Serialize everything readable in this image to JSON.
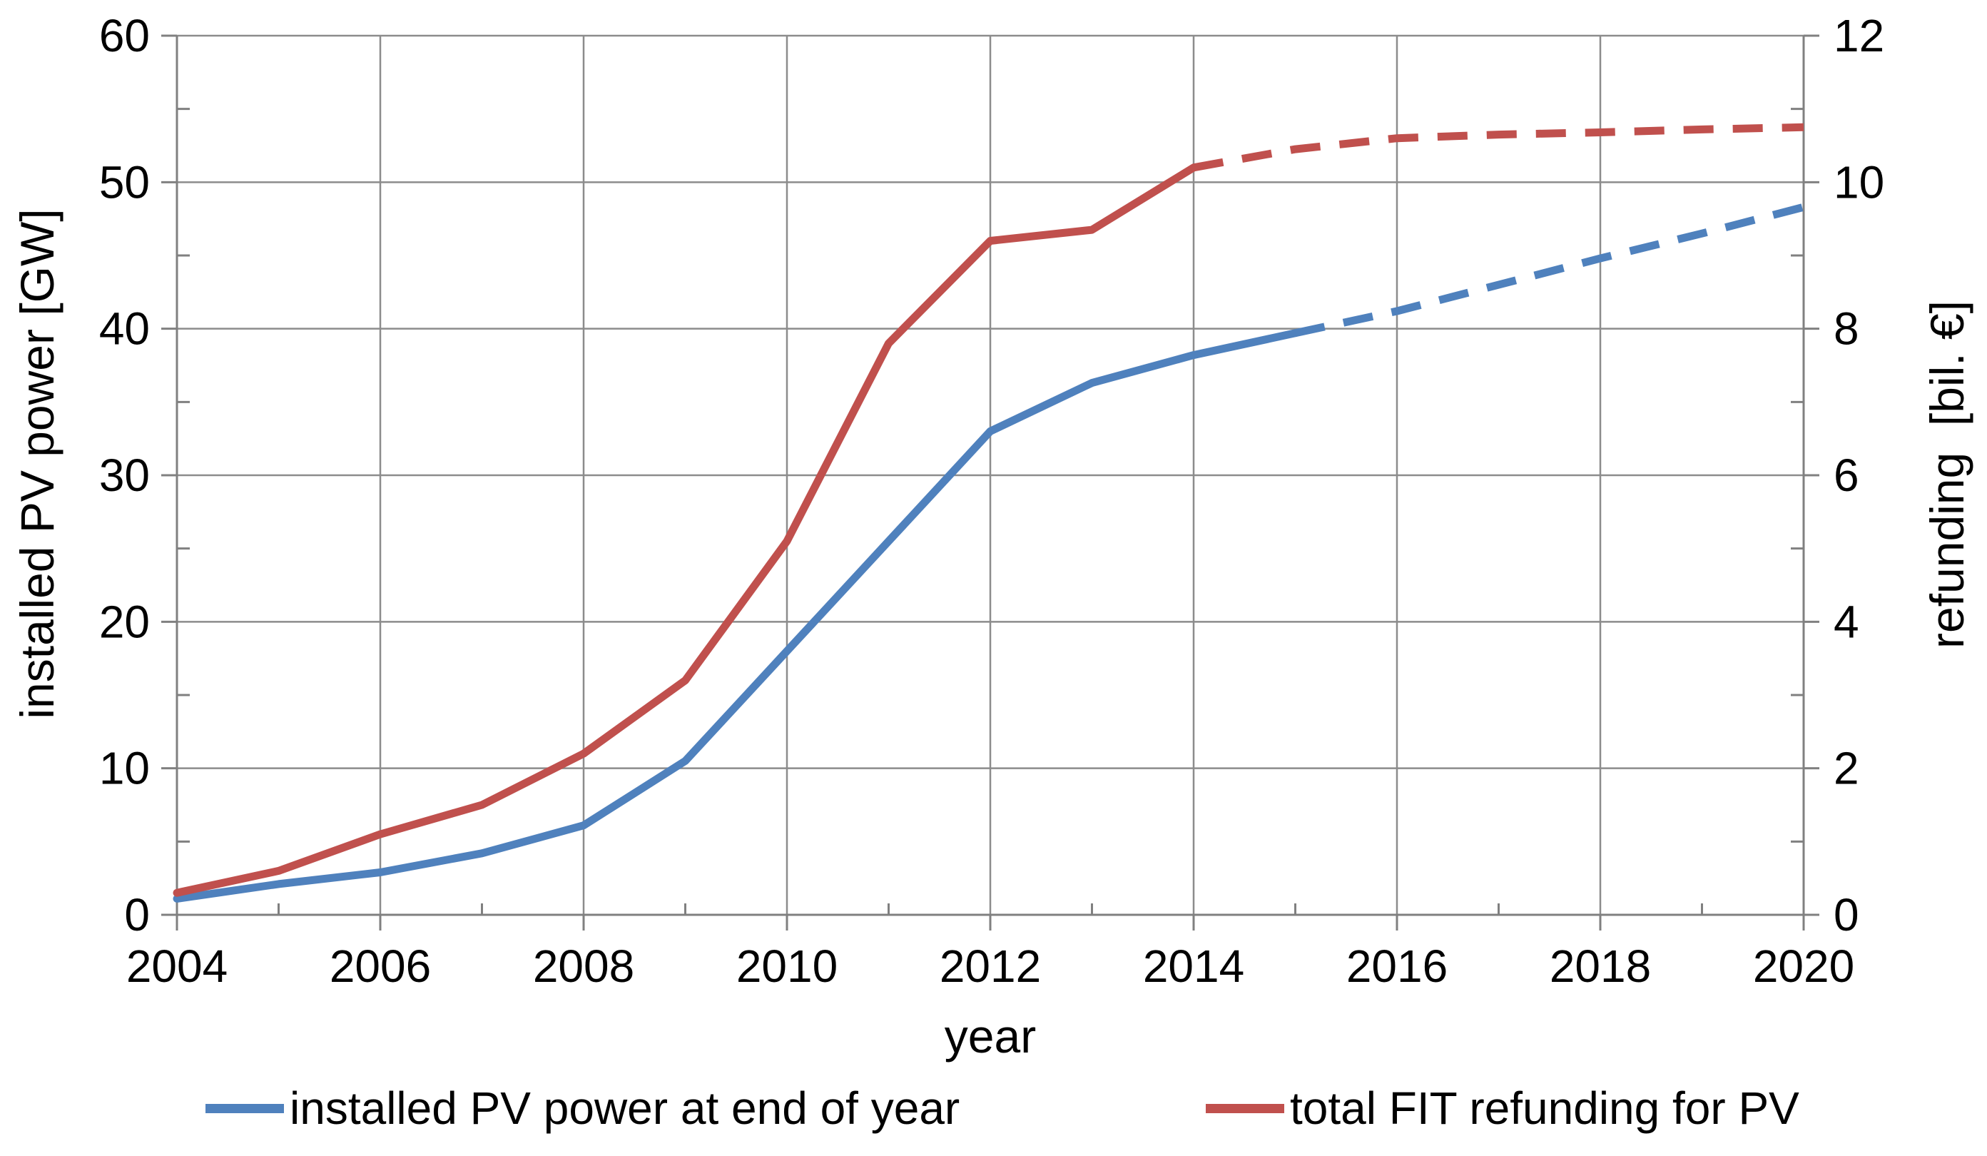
{
  "chart_data": {
    "type": "line",
    "title": "",
    "x": [
      2004,
      2005,
      2006,
      2007,
      2008,
      2009,
      2010,
      2011,
      2012,
      2013,
      2014,
      2015,
      2016,
      2017,
      2018,
      2019,
      2020
    ],
    "xlabel": "year",
    "grid": true,
    "legend_position": "bottom",
    "axes": {
      "x": {
        "label": "year",
        "min": 2004,
        "max": 2020,
        "major": 2,
        "minor": 1,
        "ticks": [
          "2004",
          "2006",
          "2008",
          "2010",
          "2012",
          "2014",
          "2016",
          "2018",
          "2020"
        ]
      },
      "left": {
        "label": "installed PV power [GW]",
        "min": 0,
        "max": 60,
        "major": 10,
        "minor": 5,
        "ticks": [
          "0",
          "10",
          "20",
          "30",
          "40",
          "50",
          "60"
        ]
      },
      "right": {
        "label": "refunding  [bil. €]",
        "min": 0,
        "max": 12,
        "major": 2,
        "minor": 1,
        "ticks": [
          "0",
          "2",
          "4",
          "6",
          "8",
          "10",
          "12"
        ]
      }
    },
    "series": [
      {
        "name": "installed PV power at end of year",
        "axis": "left",
        "color": "#4F81BD",
        "style_note": "solid line until 2015, dashed projection 2015-2020",
        "solid_until": 2015,
        "values": [
          1.1,
          2.1,
          2.9,
          4.2,
          6.1,
          10.5,
          18.0,
          25.5,
          33.0,
          36.3,
          38.2,
          39.7,
          41.2,
          43.0,
          44.8,
          46.5,
          48.3
        ]
      },
      {
        "name": "total FIT refunding for PV",
        "axis": "right",
        "color": "#C0504D",
        "style_note": "solid line until 2014, dashed projection 2014-2020",
        "solid_until": 2014,
        "values": [
          0.3,
          0.6,
          1.1,
          1.5,
          2.2,
          3.2,
          5.1,
          7.8,
          9.2,
          9.35,
          10.2,
          10.45,
          10.6,
          10.65,
          10.68,
          10.72,
          10.75
        ]
      }
    ]
  },
  "axis_titles": {
    "left": "installed PV power [GW]",
    "right": "refunding  [bil. €]",
    "x": "year"
  },
  "legend": {
    "items": [
      {
        "label": "installed PV power at end of year",
        "color": "#4F81BD"
      },
      {
        "label": "total FIT refunding for PV",
        "color": "#C0504D"
      }
    ]
  },
  "colors": {
    "series_blue": "#4F81BD",
    "series_red": "#C0504D",
    "gridline": "#8C8C8C",
    "axis_line": "#808080",
    "text": "#000000",
    "background": "#FFFFFF"
  }
}
